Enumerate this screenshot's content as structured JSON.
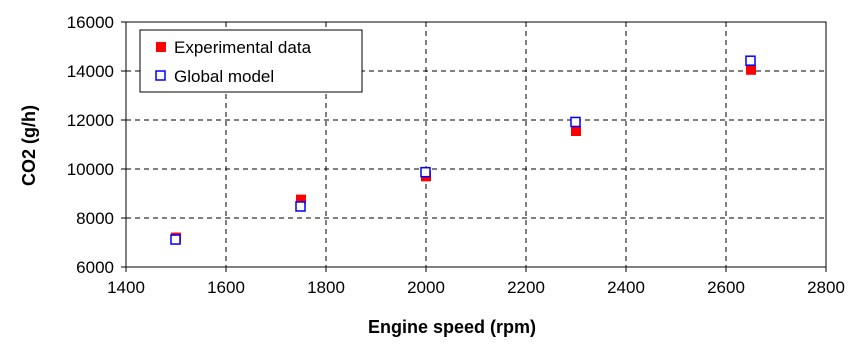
{
  "chart_data": {
    "type": "scatter",
    "title": "",
    "xlabel": "Engine speed (rpm)",
    "ylabel": "CO2 (g/h)",
    "xlim": [
      1400,
      2800
    ],
    "ylim": [
      6000,
      16000
    ],
    "xticks": [
      1400,
      1600,
      1800,
      2000,
      2200,
      2400,
      2600,
      2800
    ],
    "yticks": [
      6000,
      8000,
      10000,
      12000,
      14000,
      16000
    ],
    "grid": true,
    "legend_position": "top-left",
    "series": [
      {
        "name": "Experimental data",
        "marker": "filled-square",
        "color": "#ff0000",
        "x": [
          1500,
          1750,
          2000,
          2300,
          2650
        ],
        "y": [
          7200,
          8750,
          9700,
          11550,
          14050
        ]
      },
      {
        "name": "Global model",
        "marker": "open-square",
        "color": "#0000ff",
        "x": [
          1500,
          1750,
          2000,
          2300,
          2650
        ],
        "y": [
          7100,
          8450,
          9850,
          11900,
          14400
        ]
      }
    ]
  }
}
